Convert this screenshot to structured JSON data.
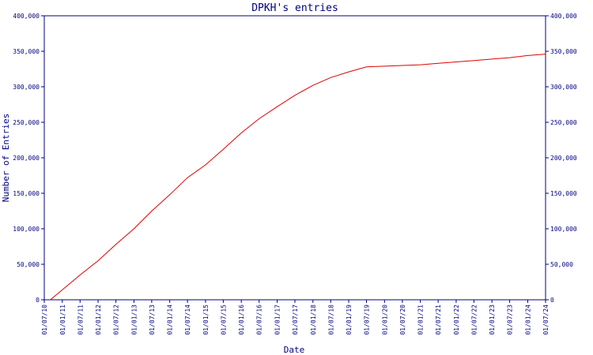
{
  "chart_data": {
    "type": "line",
    "title": "DPKH's entries",
    "xlabel": "Date",
    "ylabel": "Number of Entries",
    "ylim": [
      0,
      400000
    ],
    "y_ticks": [
      0,
      50000,
      100000,
      150000,
      200000,
      250000,
      300000,
      350000,
      400000
    ],
    "y_tick_labels": [
      "0",
      "50,000",
      "100,000",
      "150,000",
      "200,000",
      "250,000",
      "300,000",
      "350,000",
      "400,000"
    ],
    "x_tick_labels": [
      "01/07/10",
      "01/01/11",
      "01/07/11",
      "01/01/12",
      "01/07/12",
      "01/01/13",
      "01/07/13",
      "01/01/14",
      "01/07/14",
      "01/01/15",
      "01/07/15",
      "01/01/16",
      "01/07/16",
      "01/01/17",
      "01/07/17",
      "01/01/18",
      "01/07/18",
      "01/01/19",
      "01/07/19",
      "01/01/20",
      "01/07/20",
      "01/01/21",
      "01/07/21",
      "01/01/22",
      "01/07/22",
      "01/01/23",
      "01/07/23",
      "01/01/24",
      "01/07/24"
    ],
    "grid": false,
    "right_axis_mirror": true,
    "colors": {
      "axis": "#000080",
      "line": "#e00000"
    },
    "series": [
      {
        "x": [
          "01/09/10",
          "01/01/11",
          "01/07/11",
          "01/01/12",
          "01/07/12",
          "01/01/13",
          "01/07/13",
          "01/01/14",
          "01/07/14",
          "01/01/15",
          "01/07/15",
          "01/01/16",
          "01/07/16",
          "01/01/17",
          "01/07/17",
          "01/01/18",
          "01/07/18",
          "01/01/19",
          "01/07/19",
          "01/01/20",
          "01/07/20",
          "01/01/21",
          "01/07/21",
          "01/01/22",
          "01/07/22",
          "01/01/23",
          "01/07/23",
          "01/01/24",
          "01/07/24"
        ],
        "y": [
          0,
          14000,
          35000,
          55000,
          78000,
          100000,
          125000,
          148000,
          172000,
          190000,
          212000,
          235000,
          255000,
          272000,
          288000,
          302000,
          313000,
          321000,
          328000,
          329000,
          330000,
          331000,
          333000,
          335000,
          337000,
          339000,
          341000,
          344000,
          346000
        ]
      }
    ]
  }
}
